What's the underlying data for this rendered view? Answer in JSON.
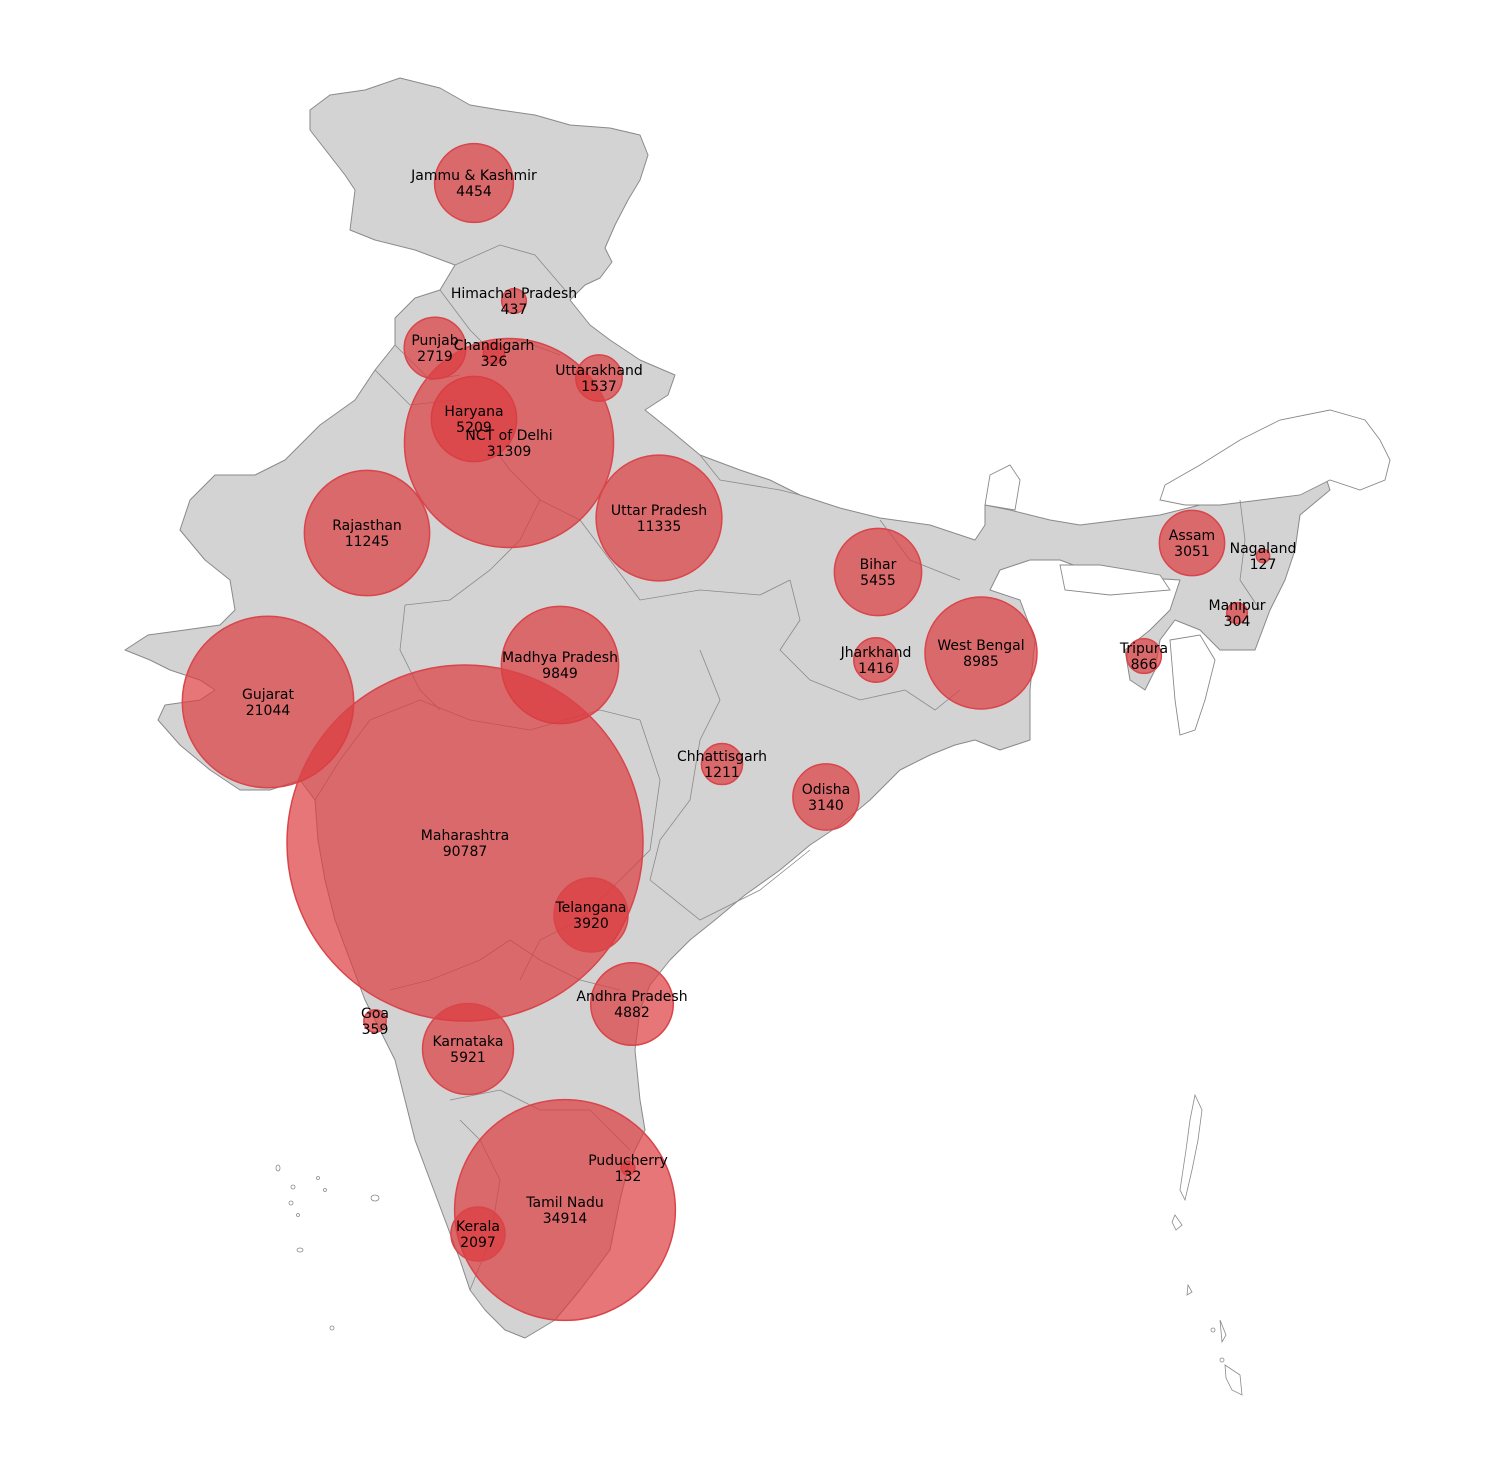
{
  "colors": {
    "land": "#d3d3d3",
    "border": "#8a8a8a",
    "bubble_fill": "#dc3c3f",
    "bubble_stroke": "#d9454a",
    "background": "#ffffff"
  },
  "bubble_scale": {
    "reference_value": 90787,
    "reference_radius_px": 178
  },
  "states": [
    {
      "name": "Jammu & Kashmir",
      "value": 4454
    },
    {
      "name": "Himachal Pradesh",
      "value": 437
    },
    {
      "name": "Punjab",
      "value": 2719
    },
    {
      "name": "Chandigarh",
      "value": 326
    },
    {
      "name": "Uttarakhand",
      "value": 1537
    },
    {
      "name": "Haryana",
      "value": 5209
    },
    {
      "name": "NCT of Delhi",
      "value": 31309
    },
    {
      "name": "Rajasthan",
      "value": 11245
    },
    {
      "name": "Uttar Pradesh",
      "value": 11335
    },
    {
      "name": "Bihar",
      "value": 5455
    },
    {
      "name": "Assam",
      "value": 3051
    },
    {
      "name": "Nagaland",
      "value": 127
    },
    {
      "name": "Manipur",
      "value": 304
    },
    {
      "name": "Tripura",
      "value": 866
    },
    {
      "name": "West Bengal",
      "value": 8985
    },
    {
      "name": "Jharkhand",
      "value": 1416
    },
    {
      "name": "Gujarat",
      "value": 21044
    },
    {
      "name": "Madhya Pradesh",
      "value": 9849
    },
    {
      "name": "Chhattisgarh",
      "value": 1211
    },
    {
      "name": "Odisha",
      "value": 3140
    },
    {
      "name": "Maharashtra",
      "value": 90787
    },
    {
      "name": "Telangana",
      "value": 3920
    },
    {
      "name": "Andhra Pradesh",
      "value": 4882
    },
    {
      "name": "Goa",
      "value": 359
    },
    {
      "name": "Karnataka",
      "value": 5921
    },
    {
      "name": "Puducherry",
      "value": 132
    },
    {
      "name": "Tamil Nadu",
      "value": 34914
    },
    {
      "name": "Kerala",
      "value": 2097
    }
  ]
}
